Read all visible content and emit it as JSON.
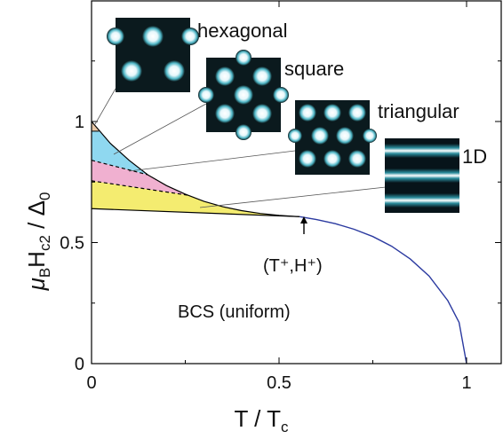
{
  "chart_data": {
    "type": "line",
    "xlabel_main": "T / T",
    "xlabel_sub": "c",
    "ylabel_mu": "μ",
    "ylabel_B": "B",
    "ylabel_H": "H",
    "ylabel_c2": "c2",
    "ylabel_slash": " / Δ",
    "ylabel_0": "0",
    "xlim": [
      0,
      1.05
    ],
    "ylim": [
      0,
      1.5
    ],
    "xticks": [
      {
        "v": 0,
        "label": "0"
      },
      {
        "v": 0.5,
        "label": "0.5"
      },
      {
        "v": 1,
        "label": "1"
      }
    ],
    "yticks": [
      {
        "v": 0,
        "label": "0"
      },
      {
        "v": 0.5,
        "label": "0.5"
      },
      {
        "v": 1,
        "label": "1"
      }
    ],
    "bcs_curve": {
      "name": "BCS upper critical field",
      "color": "#2b3aa0",
      "points": [
        [
          0.555,
          0.607
        ],
        [
          0.6,
          0.595
        ],
        [
          0.65,
          0.578
        ],
        [
          0.7,
          0.555
        ],
        [
          0.75,
          0.525
        ],
        [
          0.8,
          0.485
        ],
        [
          0.85,
          0.432
        ],
        [
          0.9,
          0.362
        ],
        [
          0.95,
          0.26
        ],
        [
          0.98,
          0.17
        ],
        [
          1.0,
          0.0
        ]
      ]
    },
    "upper_boundary": [
      [
        0.0,
        1.0
      ],
      [
        0.05,
        0.91
      ],
      [
        0.1,
        0.84
      ],
      [
        0.15,
        0.78
      ],
      [
        0.2,
        0.735
      ],
      [
        0.25,
        0.7
      ],
      [
        0.3,
        0.67
      ],
      [
        0.35,
        0.648
      ],
      [
        0.4,
        0.632
      ],
      [
        0.45,
        0.62
      ],
      [
        0.5,
        0.612
      ],
      [
        0.555,
        0.607
      ]
    ],
    "phases": [
      {
        "name": "hexagonal",
        "color": "#e8c7a6",
        "y_bottom_at_0": 0.96,
        "y_bottom_end": [
          0.02,
          0.96
        ]
      },
      {
        "name": "square",
        "color": "#8fd8f0",
        "y_bottom_at_0": 0.84,
        "y_bottom_end": [
          0.15,
          0.78
        ]
      },
      {
        "name": "triangular",
        "color": "#f0b0d0",
        "y_bottom_at_0": 0.755,
        "y_bottom_end": [
          0.26,
          0.695
        ]
      },
      {
        "name": "1D",
        "color": "#f4ec70",
        "y_bottom_at_0": 0.64,
        "y_bottom_end": [
          0.555,
          0.607
        ]
      }
    ],
    "tricritical": {
      "x": 0.555,
      "y": 0.607,
      "label": "(T⁺,H⁺)"
    },
    "region_label": "BCS (uniform)",
    "pattern_labels": [
      "hexagonal",
      "square",
      "triangular",
      "1D"
    ]
  }
}
